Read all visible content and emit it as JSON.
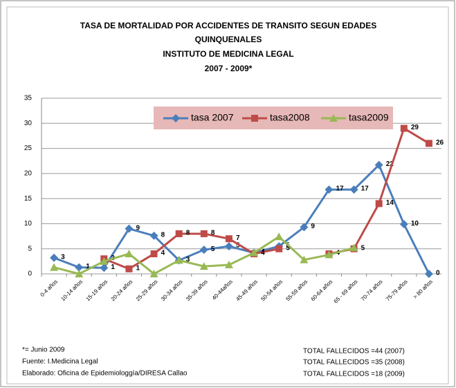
{
  "chart_data": {
    "type": "line",
    "title": [
      "TASA DE MORTALIDAD POR ACCIDENTES DE TRANSITO SEGUN EDADES",
      "QUINQUENALES",
      "INSTITUTO DE MEDICINA LEGAL",
      "2007 - 2009*"
    ],
    "categories": [
      "0-4 años",
      "10-14 años",
      "15-19 años",
      "20-24 años",
      "25-29 años",
      "30-34 años",
      "35-39 años",
      "40-44años",
      "45-49 años",
      "50-54 años",
      "55-59 años",
      "60-64 años",
      "65 - 69 años",
      "70-74 años",
      "75-79 años",
      "> 80 años"
    ],
    "series": [
      {
        "name": "tasa 2007",
        "color": "#4a7ebb",
        "marker": "diamond",
        "values": [
          3.2,
          1.3,
          1.2,
          9,
          7.6,
          2.7,
          4.8,
          5.5,
          4.2,
          5.5,
          9.3,
          16.8,
          16.8,
          21.7,
          9.9,
          0
        ],
        "value_labels": [
          "3",
          "1",
          "1",
          "9",
          "8",
          "3",
          "5",
          "5",
          "4",
          "5",
          "9",
          "17",
          "17",
          "22",
          "10",
          "0"
        ]
      },
      {
        "name": "tasa2008",
        "color": "#be4b48",
        "marker": "square",
        "values": [
          null,
          null,
          3,
          1,
          4,
          8,
          8,
          7,
          4,
          5,
          null,
          4,
          5,
          14,
          29,
          26
        ],
        "value_labels": [
          null,
          null,
          "3",
          "1",
          "4",
          "8",
          "8",
          "7",
          "4",
          "5",
          null,
          "4",
          "5",
          "14",
          "29",
          "26"
        ]
      },
      {
        "name": "tasa2009",
        "color": "#98b954",
        "marker": "triangle",
        "values": [
          1.3,
          0,
          2.5,
          4,
          0,
          2.7,
          1.5,
          1.8,
          4.2,
          7.4,
          2.8,
          3.8,
          5.2,
          null,
          null,
          null
        ]
      }
    ],
    "ylim": [
      0,
      35
    ],
    "yticks": [
      0,
      5,
      10,
      15,
      20,
      25,
      30,
      35
    ],
    "grid": true,
    "legend": "top",
    "notes": [
      "*= Junio 2009",
      "Fuente: I.Medicina Legal",
      "Elaborado: Oficina de Epidemiologgía/DIRESA Callao"
    ],
    "totals": [
      "TOTAL FALLECIDOS =44  (2007)",
      "TOTAL FALLECIDOS =35  (2008)",
      "TOTAL FALLECIDOS =18  (2009)"
    ]
  }
}
